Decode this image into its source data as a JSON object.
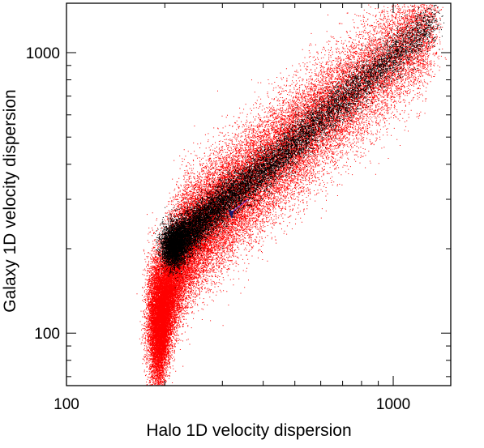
{
  "chart_data": {
    "type": "scatter",
    "xscale": "log",
    "yscale": "log",
    "xlim": [
      100,
      1500
    ],
    "ylim": [
      65,
      1500
    ],
    "xlabel": "Halo 1D velocity dispersion",
    "ylabel": "Galaxy 1D velocity dispersion",
    "x_ticks": [
      {
        "value": 100,
        "label": "100"
      },
      {
        "value": 1000,
        "label": "1000"
      }
    ],
    "y_ticks": [
      {
        "value": 100,
        "label": "100"
      },
      {
        "value": 1000,
        "label": "1000"
      }
    ],
    "grid": false,
    "series": [
      {
        "color": "#ff0000",
        "marker_size": 1,
        "n_points": 45000,
        "trend": {
          "x": [
            195,
            210,
            230,
            260,
            300,
            360,
            450,
            560,
            700,
            850,
            1000
          ],
          "y": [
            110,
            155,
            200,
            240,
            280,
            340,
            430,
            540,
            680,
            820,
            960
          ]
        },
        "scatter_dex": 0.1
      },
      {
        "color": "#000000",
        "marker_size": 1,
        "n_points": 16000,
        "trend": {
          "x": [
            215,
            240,
            270,
            310,
            360,
            430,
            520,
            620,
            740,
            860,
            1000
          ],
          "y": [
            205,
            230,
            262,
            300,
            345,
            410,
            500,
            600,
            720,
            840,
            970
          ]
        },
        "scatter_dex": 0.04
      }
    ],
    "marker": {
      "type": "triangle",
      "x": 320,
      "y": 265,
      "color": "#1a1a6e"
    },
    "annotation_line": {
      "x": [
        320,
        360
      ],
      "y": [
        270,
        300
      ],
      "color": "#7a2dd6"
    }
  }
}
